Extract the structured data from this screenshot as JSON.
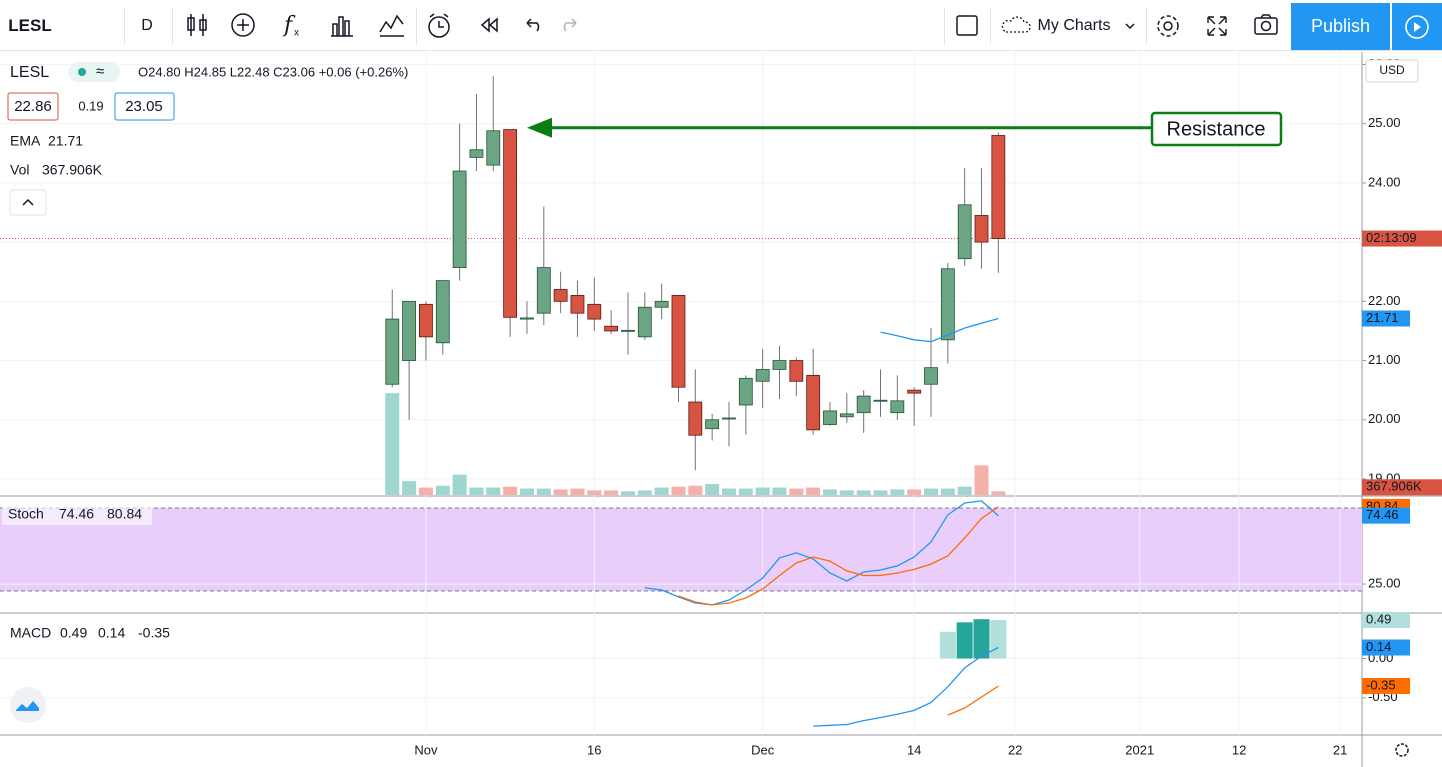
{
  "toolbar": {
    "interval": "D",
    "layout": "My Charts",
    "publish": "Publish"
  },
  "chart_data": [
    {
      "type": "candlestick",
      "symbol": "LESL",
      "ohlc_label": "O24.80 H24.85 L22.48 C23.06 +0.06 (+0.26%)",
      "bid": 22.86,
      "spread": 0.19,
      "ask": 23.05,
      "currency": "USD",
      "countdown": "02:13:09",
      "xlim": [
        -23.3,
        57.6
      ],
      "xticks": [
        {
          "value": 2,
          "label": "Nov"
        },
        {
          "value": 12,
          "label": "16"
        },
        {
          "value": 22,
          "label": "Dec"
        },
        {
          "value": 31,
          "label": "14"
        },
        {
          "value": 37,
          "label": "22"
        },
        {
          "value": 44.4,
          "label": "2021"
        },
        {
          "value": 50.3,
          "label": "12"
        },
        {
          "value": 56.3,
          "label": "21"
        }
      ],
      "ylim": [
        18.73,
        26.21
      ],
      "yticks": [
        {
          "value": 19,
          "label": "19.00"
        },
        {
          "value": 20,
          "label": "20.00"
        },
        {
          "value": 21,
          "label": "21.00"
        },
        {
          "value": 22,
          "label": "22.00"
        },
        {
          "value": 23,
          "label": "23.00"
        },
        {
          "value": 24,
          "label": "24.00"
        },
        {
          "value": 25,
          "label": "25.00"
        },
        {
          "value": 26,
          "label": "26.00"
        }
      ],
      "grid": true,
      "up_color": "#6ba583",
      "down_color": "#d75442",
      "open": [
        20.6,
        21.0,
        21.95,
        21.3,
        22.57,
        24.43,
        24.3,
        24.9,
        21.7,
        21.8,
        22.2,
        22.1,
        21.95,
        21.58,
        21.5,
        21.4,
        21.9,
        22.1,
        20.3,
        19.85,
        20.02,
        20.25,
        20.65,
        20.85,
        21.0,
        20.75,
        19.92,
        20.05,
        20.12,
        20.32,
        20.12,
        20.5,
        20.6,
        21.35,
        22.72,
        23.45,
        24.8
      ],
      "high": [
        22.2,
        22.0,
        22.0,
        22.35,
        25.0,
        25.5,
        25.8,
        24.9,
        22.0,
        23.6,
        22.5,
        22.35,
        22.4,
        21.85,
        22.15,
        22.15,
        22.3,
        22.1,
        20.85,
        20.1,
        20.3,
        20.75,
        21.2,
        21.25,
        21.05,
        21.2,
        20.3,
        20.45,
        20.5,
        20.85,
        20.75,
        20.55,
        21.55,
        22.65,
        24.25,
        24.25,
        24.85
      ],
      "low": [
        20.55,
        20.0,
        21.0,
        21.1,
        22.35,
        24.2,
        24.2,
        21.4,
        21.45,
        21.6,
        21.8,
        21.4,
        21.5,
        21.45,
        21.1,
        21.35,
        21.7,
        20.3,
        19.15,
        19.65,
        19.55,
        19.75,
        20.2,
        20.35,
        20.4,
        19.75,
        19.9,
        19.95,
        19.78,
        20.05,
        20.0,
        19.9,
        20.05,
        20.95,
        22.6,
        22.55,
        22.48
      ],
      "close": [
        21.7,
        22.0,
        21.4,
        22.35,
        24.2,
        24.56,
        24.88,
        21.73,
        21.72,
        22.57,
        22.0,
        21.8,
        21.7,
        21.5,
        21.51,
        21.9,
        22.0,
        20.55,
        19.74,
        20.0,
        20.03,
        20.7,
        20.85,
        21.0,
        20.65,
        19.83,
        20.15,
        20.1,
        20.4,
        20.33,
        20.32,
        20.45,
        20.88,
        22.55,
        23.63,
        23.0,
        23.06
      ],
      "ema": {
        "name": "EMA",
        "color": "#2196f3",
        "values": [
          null,
          null,
          null,
          null,
          null,
          null,
          null,
          null,
          null,
          null,
          null,
          null,
          null,
          null,
          null,
          null,
          null,
          null,
          null,
          null,
          null,
          null,
          null,
          null,
          null,
          null,
          null,
          null,
          null,
          21.48,
          21.42,
          21.35,
          21.32,
          21.43,
          21.55,
          21.63,
          21.71
        ]
      },
      "volume": {
        "name": "Vol",
        "last_label": "367.906K",
        "vlim": [
          0,
          11000000
        ],
        "up_color": "#9fd6cf",
        "down_color": "#f4b1aa",
        "values": [
          10120000,
          1380000,
          740000,
          920000,
          2020000,
          740000,
          740000,
          830000,
          640000,
          640000,
          550000,
          640000,
          460000,
          460000,
          370000,
          460000,
          740000,
          830000,
          920000,
          1100000,
          640000,
          640000,
          740000,
          740000,
          640000,
          740000,
          550000,
          460000,
          460000,
          460000,
          550000,
          550000,
          640000,
          640000,
          830000,
          2940000,
          367906
        ]
      },
      "resistance": {
        "label": "Resistance",
        "price": 24.93,
        "color": "#0a7d14"
      }
    },
    {
      "type": "stoch",
      "name": "Stoch",
      "ylim": [
        4.8,
        87.95
      ],
      "yticks": [
        {
          "value": 25,
          "label": "25.00"
        }
      ],
      "band": [
        20,
        80
      ],
      "band_color": "#e9cdfb",
      "series": [
        {
          "color": "#2196f3",
          "values": [
            null,
            null,
            null,
            null,
            null,
            null,
            null,
            null,
            null,
            null,
            null,
            null,
            null,
            null,
            null,
            22.2,
            20.7,
            15.7,
            11.3,
            9.9,
            13.5,
            20.7,
            29.4,
            43.9,
            47.5,
            43.1,
            33.0,
            27.2,
            33.7,
            35.2,
            38.1,
            44.6,
            55.4,
            75.0,
            83.6,
            85.1,
            74.46
          ]
        },
        {
          "color": "#ff6d00",
          "values": [
            null,
            null,
            null,
            null,
            null,
            null,
            null,
            null,
            null,
            null,
            null,
            null,
            null,
            null,
            null,
            null,
            null,
            16.4,
            12.0,
            9.9,
            11.3,
            14.9,
            21.4,
            31.2,
            40.2,
            44.6,
            41.6,
            34.5,
            31.2,
            31.2,
            33.0,
            35.6,
            39.4,
            45.4,
            58.3,
            72.4,
            80.84
          ]
        }
      ]
    },
    {
      "type": "macd",
      "name": "MACD",
      "ylim": [
        -0.973,
        0.566
      ],
      "yticks": [
        {
          "value": 0,
          "label": "0.00"
        },
        {
          "value": -0.5,
          "label": "-0.50"
        }
      ],
      "histogram": {
        "color": "#26a69a",
        "fade_color": "#b2dfdb",
        "values": [
          null,
          null,
          null,
          null,
          null,
          null,
          null,
          null,
          null,
          null,
          null,
          null,
          null,
          null,
          null,
          null,
          null,
          null,
          null,
          null,
          null,
          null,
          null,
          null,
          null,
          null,
          null,
          null,
          null,
          null,
          null,
          null,
          null,
          0.34,
          0.46,
          0.5,
          0.49
        ]
      },
      "series": [
        {
          "color": "#2196f3",
          "values": [
            null,
            null,
            null,
            null,
            null,
            null,
            null,
            null,
            null,
            null,
            null,
            null,
            null,
            null,
            null,
            null,
            null,
            null,
            null,
            null,
            null,
            null,
            null,
            null,
            null,
            -0.86,
            -0.85,
            -0.84,
            -0.79,
            -0.75,
            -0.71,
            -0.66,
            -0.56,
            -0.36,
            -0.12,
            0.03,
            0.14
          ]
        },
        {
          "color": "#ff6d00",
          "values": [
            null,
            null,
            null,
            null,
            null,
            null,
            null,
            null,
            null,
            null,
            null,
            null,
            null,
            null,
            null,
            null,
            null,
            null,
            null,
            null,
            null,
            null,
            null,
            null,
            null,
            null,
            null,
            null,
            null,
            null,
            null,
            null,
            null,
            -0.72,
            -0.63,
            -0.49,
            -0.35
          ]
        }
      ]
    }
  ]
}
